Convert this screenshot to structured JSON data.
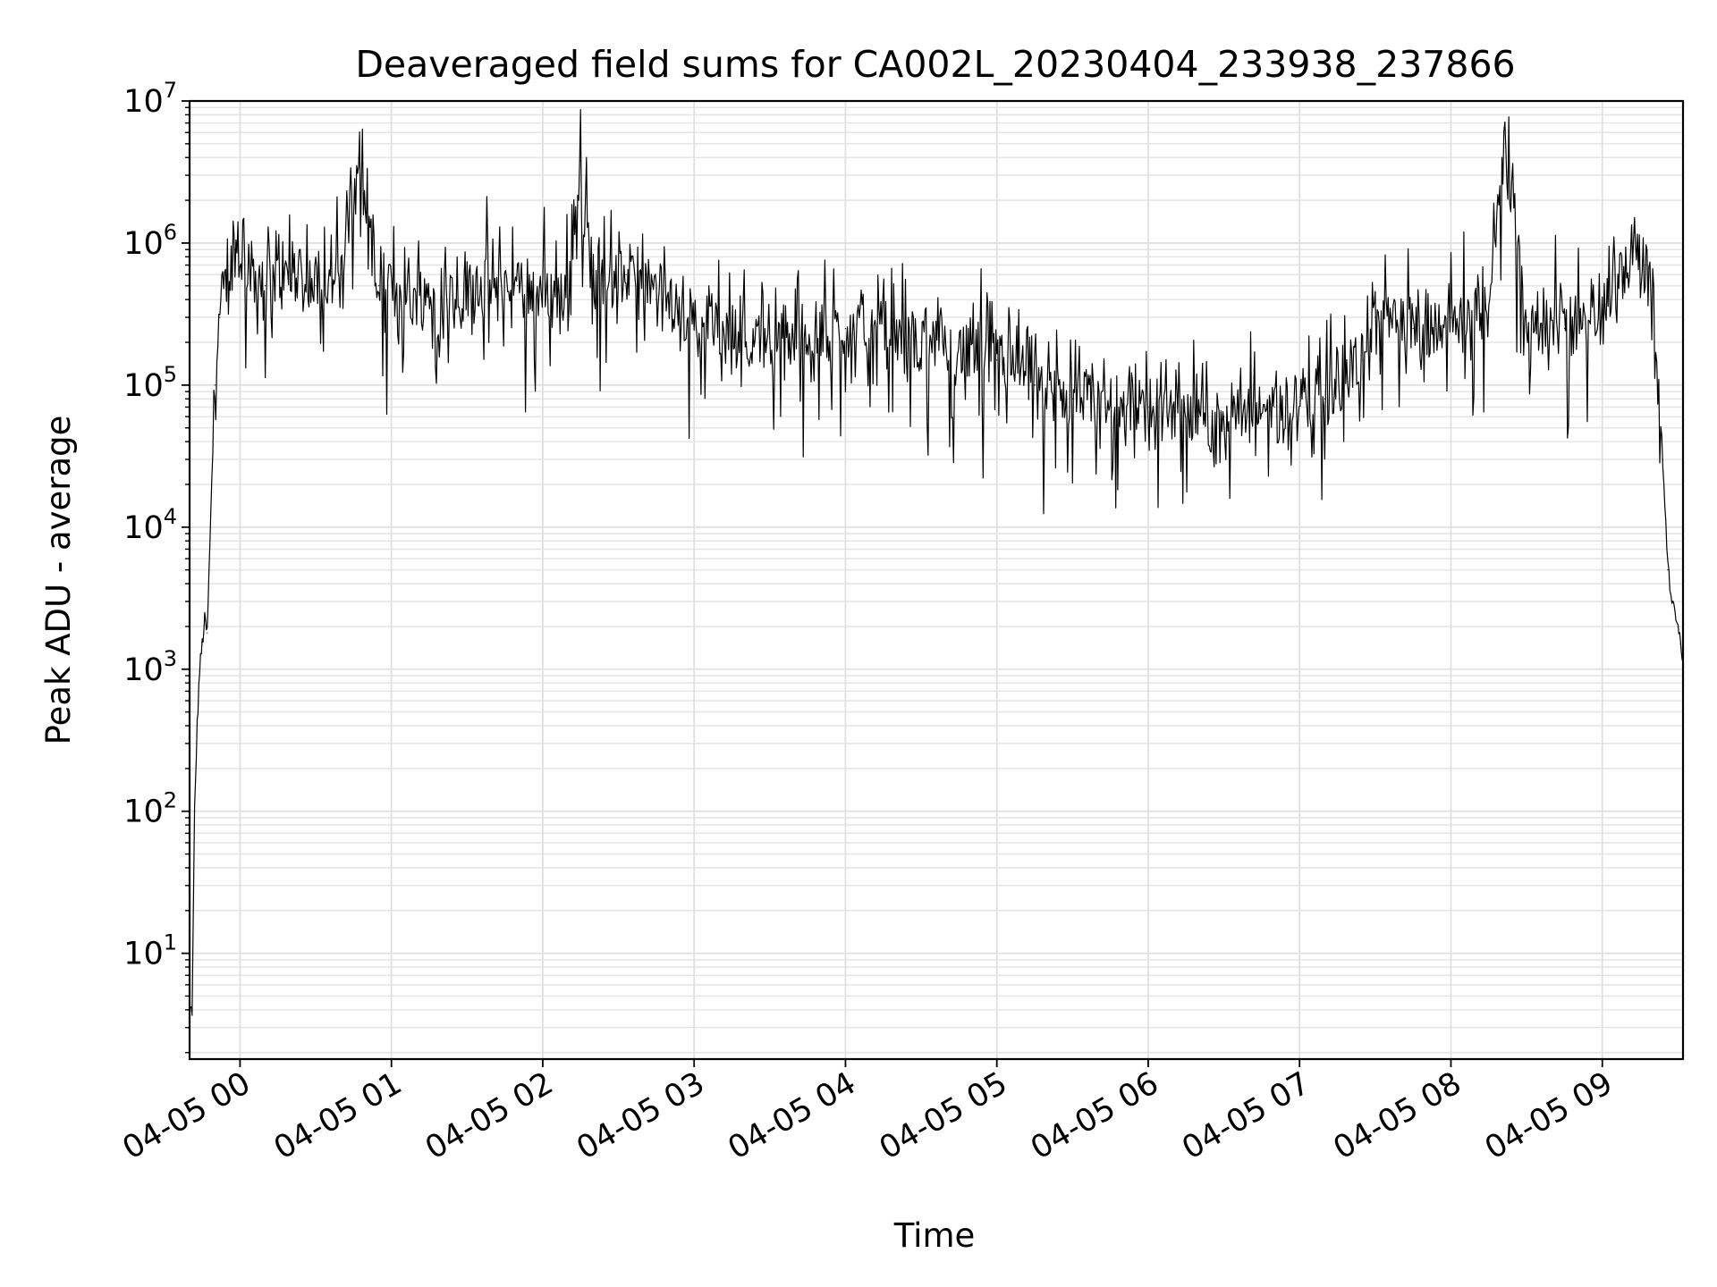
{
  "chart_data": {
    "type": "line",
    "title": "Deaveraged field sums for CA002L_20230404_233938_237866",
    "xlabel": "Time",
    "ylabel": "Peak ADU - average",
    "y_scale": "log",
    "ylim": [
      1.8,
      10000000
    ],
    "xlim": [
      "2023-04-04 23:40",
      "2023-04-05 09:32"
    ],
    "grid": true,
    "x_ticks": [
      "04-05 00",
      "04-05 01",
      "04-05 02",
      "04-05 03",
      "04-05 04",
      "04-05 05",
      "04-05 06",
      "04-05 07",
      "04-05 08",
      "04-05 09"
    ],
    "y_ticks": [
      {
        "base": "10",
        "exp": "1",
        "value": 10
      },
      {
        "base": "10",
        "exp": "2",
        "value": 100
      },
      {
        "base": "10",
        "exp": "3",
        "value": 1000
      },
      {
        "base": "10",
        "exp": "4",
        "value": 10000
      },
      {
        "base": "10",
        "exp": "5",
        "value": 100000
      },
      {
        "base": "10",
        "exp": "6",
        "value": 1000000
      },
      {
        "base": "10",
        "exp": "7",
        "value": 10000000
      }
    ],
    "series": [
      {
        "color": "#000000",
        "x": [
          "2023-04-04 23:40",
          "2023-04-04 23:41",
          "2023-04-04 23:42",
          "2023-04-04 23:43",
          "2023-04-04 23:44",
          "2023-04-04 23:45",
          "2023-04-04 23:46",
          "2023-04-04 23:47",
          "2023-04-04 23:48",
          "2023-04-04 23:50",
          "2023-04-04 23:52",
          "2023-04-04 23:55",
          "2023-04-04 23:58",
          "2023-04-05 00:10",
          "2023-04-05 00:20",
          "2023-04-05 00:30",
          "2023-04-05 00:40",
          "2023-04-05 00:47",
          "2023-04-05 00:55",
          "2023-04-05 01:10",
          "2023-04-05 01:30",
          "2023-04-05 01:50",
          "2023-04-05 02:10",
          "2023-04-05 02:15",
          "2023-04-05 02:20",
          "2023-04-05 02:33",
          "2023-04-05 02:45",
          "2023-04-05 03:00",
          "2023-04-05 03:30",
          "2023-04-05 04:00",
          "2023-04-05 04:30",
          "2023-04-05 05:00",
          "2023-04-05 05:15",
          "2023-04-05 05:30",
          "2023-04-05 06:00",
          "2023-04-05 06:20",
          "2023-04-05 06:30",
          "2023-04-05 06:50",
          "2023-04-05 07:10",
          "2023-04-05 07:25",
          "2023-04-05 07:30",
          "2023-04-05 07:45",
          "2023-04-05 08:00",
          "2023-04-05 08:15",
          "2023-04-05 08:21",
          "2023-04-05 08:30",
          "2023-04-05 08:45",
          "2023-04-05 09:00",
          "2023-04-05 09:05",
          "2023-04-05 09:12",
          "2023-04-05 09:17",
          "2023-04-05 09:20",
          "2023-04-05 09:22",
          "2023-04-05 09:24",
          "2023-04-05 09:26",
          "2023-04-05 09:28",
          "2023-04-05 09:30",
          "2023-04-05 09:31",
          "2023-04-05 09:32"
        ],
        "y": [
          4,
          4,
          100,
          400,
          1000,
          1500,
          2200,
          1800,
          7000,
          100000,
          300000,
          600000,
          900000,
          500000,
          600000,
          500000,
          600000,
          4000000,
          500000,
          400000,
          500000,
          500000,
          400000,
          3800000,
          500000,
          600000,
          400000,
          300000,
          200000,
          250000,
          200000,
          150000,
          100000,
          80000,
          70000,
          60000,
          60000,
          70000,
          80000,
          150000,
          300000,
          250000,
          300000,
          300000,
          5000000,
          300000,
          250000,
          300000,
          600000,
          800000,
          700000,
          500000,
          100000,
          30000,
          5000,
          3000,
          2000,
          1500,
          1200
        ]
      }
    ]
  }
}
